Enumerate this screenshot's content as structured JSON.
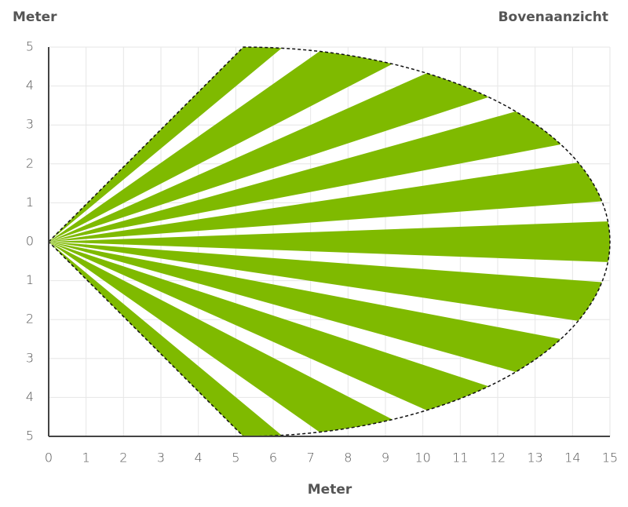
{
  "chart_data": {
    "type": "coverage",
    "title": "Bovenaanzicht",
    "y_label": "Meter",
    "x_label": "Meter",
    "color": "#7fba00",
    "xlim": [
      0,
      15
    ],
    "ylim": [
      -5,
      5
    ],
    "xticks": [
      0,
      1,
      2,
      3,
      4,
      5,
      6,
      7,
      8,
      9,
      10,
      11,
      12,
      13,
      14,
      15
    ],
    "yticks": [
      {
        "value": -5,
        "label": "5"
      },
      {
        "value": -4,
        "label": "4"
      },
      {
        "value": -3,
        "label": "3"
      },
      {
        "value": -2,
        "label": "2"
      },
      {
        "value": -1,
        "label": "1"
      },
      0,
      1,
      2,
      3,
      4,
      5
    ],
    "grid": true
  }
}
